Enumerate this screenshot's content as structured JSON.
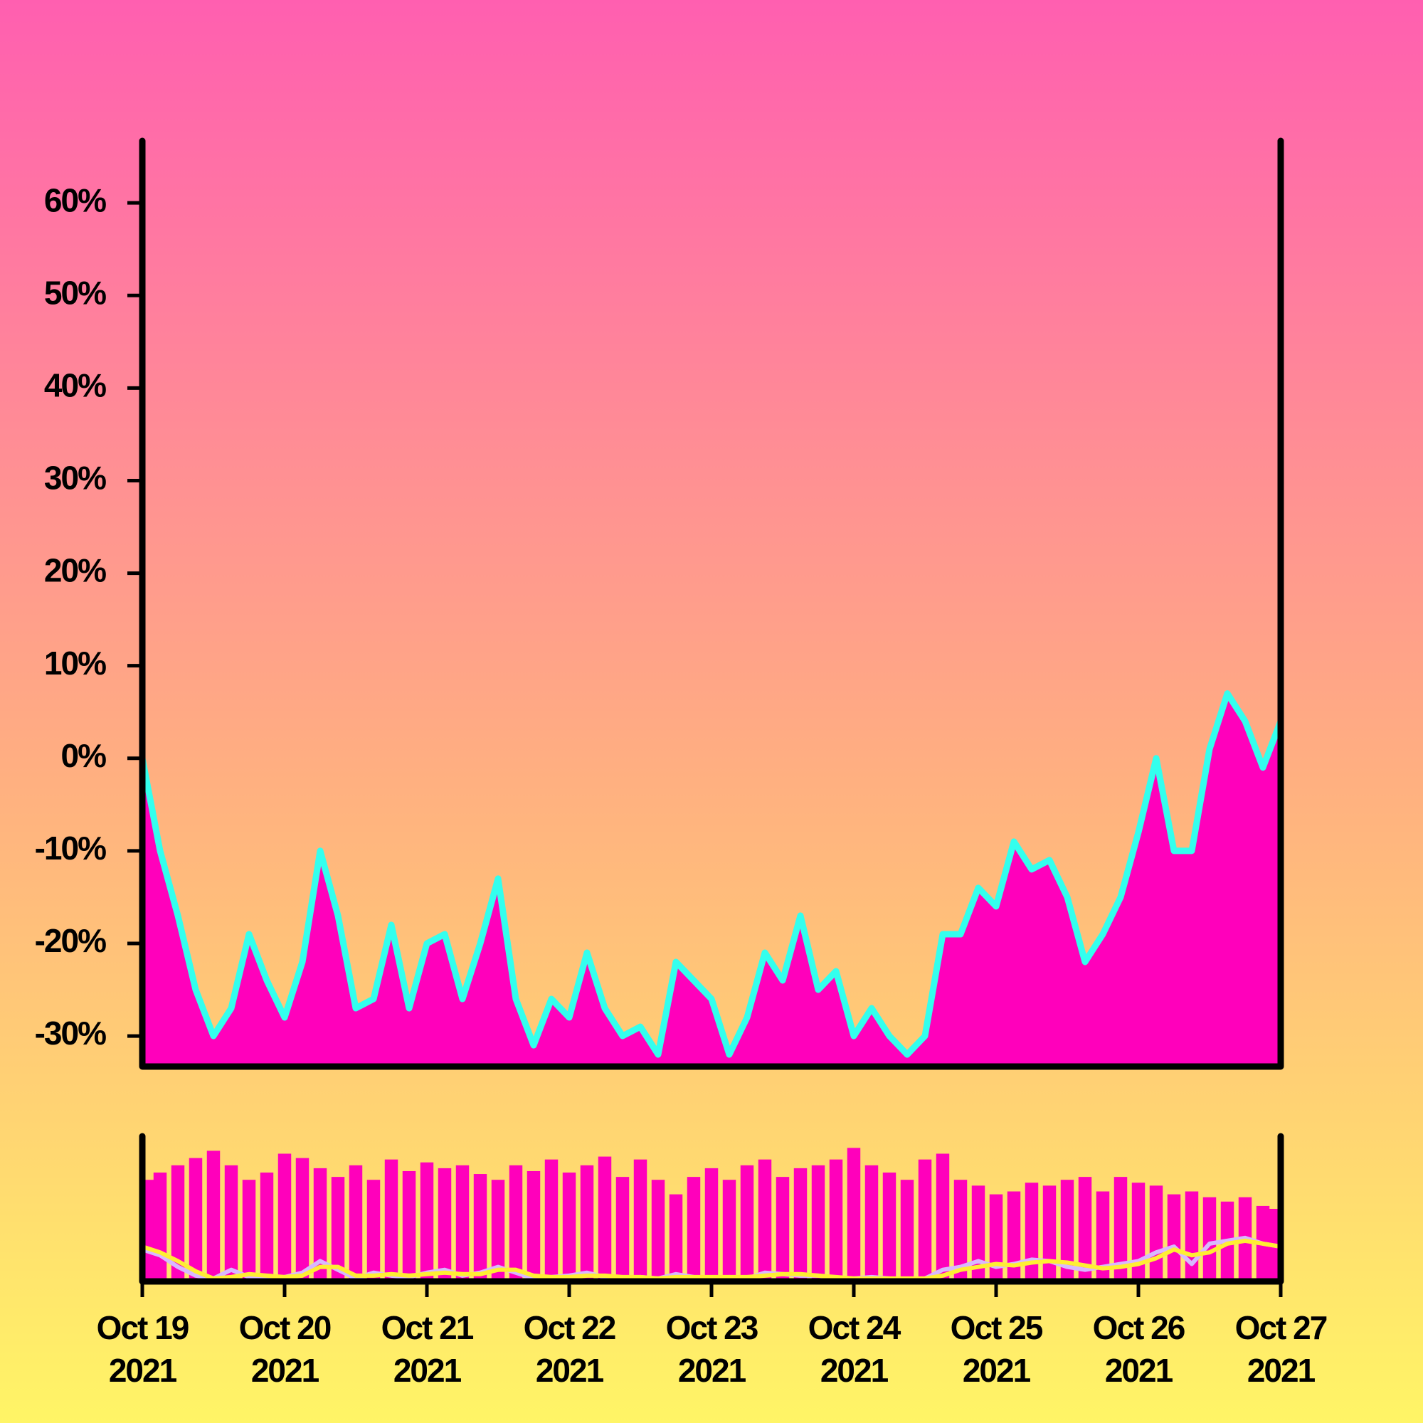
{
  "chart_data": [
    {
      "type": "area",
      "color": "#ff00bb",
      "line_color": "#33ffee",
      "x": [
        "2021-10-19 00:00",
        "2021-10-19 03:00",
        "2021-10-19 06:00",
        "2021-10-19 09:00",
        "2021-10-19 12:00",
        "2021-10-19 15:00",
        "2021-10-19 18:00",
        "2021-10-19 21:00",
        "2021-10-20 00:00",
        "2021-10-20 03:00",
        "2021-10-20 06:00",
        "2021-10-20 09:00",
        "2021-10-20 12:00",
        "2021-10-20 15:00",
        "2021-10-20 18:00",
        "2021-10-20 21:00",
        "2021-10-21 00:00",
        "2021-10-21 03:00",
        "2021-10-21 06:00",
        "2021-10-21 09:00",
        "2021-10-21 12:00",
        "2021-10-21 15:00",
        "2021-10-21 18:00",
        "2021-10-21 21:00",
        "2021-10-22 00:00",
        "2021-10-22 03:00",
        "2021-10-22 06:00",
        "2021-10-22 09:00",
        "2021-10-22 12:00",
        "2021-10-22 15:00",
        "2021-10-22 18:00",
        "2021-10-22 21:00",
        "2021-10-23 00:00",
        "2021-10-23 03:00",
        "2021-10-23 06:00",
        "2021-10-23 09:00",
        "2021-10-23 12:00",
        "2021-10-23 15:00",
        "2021-10-23 18:00",
        "2021-10-23 21:00",
        "2021-10-24 00:00",
        "2021-10-24 03:00",
        "2021-10-24 06:00",
        "2021-10-24 09:00",
        "2021-10-24 12:00",
        "2021-10-24 15:00",
        "2021-10-24 18:00",
        "2021-10-24 21:00",
        "2021-10-25 00:00",
        "2021-10-25 03:00",
        "2021-10-25 06:00",
        "2021-10-25 09:00",
        "2021-10-25 12:00",
        "2021-10-25 15:00",
        "2021-10-25 18:00",
        "2021-10-25 21:00",
        "2021-10-26 00:00",
        "2021-10-26 03:00",
        "2021-10-26 06:00",
        "2021-10-26 09:00",
        "2021-10-26 12:00",
        "2021-10-26 15:00",
        "2021-10-26 18:00",
        "2021-10-26 21:00",
        "2021-10-27 00:00"
      ],
      "values": [
        0,
        -10,
        -17,
        -25,
        -30,
        -27,
        -19,
        -24,
        -28,
        -22,
        -10,
        -17,
        -27,
        -26,
        -18,
        -27,
        -20,
        -19,
        -26,
        -20,
        -13,
        -26,
        -31,
        -26,
        -28,
        -21,
        -27,
        -30,
        -29,
        -32,
        -22,
        -24,
        -26,
        -32,
        -28,
        -21,
        -24,
        -17,
        -25,
        -23,
        -30,
        -27,
        -30,
        -32,
        -30,
        -19,
        -19,
        -14,
        -16,
        -9,
        -12,
        -11,
        -15,
        -22,
        -19,
        -15,
        -8,
        0,
        -10,
        -10,
        1,
        7,
        4,
        -1,
        4
      ],
      "xlim": [
        "2021-10-19 00:00",
        "2021-10-27 00:00"
      ],
      "ylim": [
        -33.3,
        66.7
      ],
      "yticks": [
        {
          "value": -30,
          "label": "-30%"
        },
        {
          "value": -20,
          "label": "-20%"
        },
        {
          "value": -10,
          "label": "-10%"
        },
        {
          "value": 0,
          "label": "0%"
        },
        {
          "value": 10,
          "label": "10%"
        },
        {
          "value": 20,
          "label": "20%"
        },
        {
          "value": 30,
          "label": "30%"
        },
        {
          "value": 40,
          "label": "40%"
        },
        {
          "value": 50,
          "label": "50%"
        },
        {
          "value": 60,
          "label": "60%"
        }
      ]
    },
    {
      "type": "bar",
      "x": [
        "2021-10-19 00:00",
        "2021-10-19 03:00",
        "2021-10-19 06:00",
        "2021-10-19 09:00",
        "2021-10-19 12:00",
        "2021-10-19 15:00",
        "2021-10-19 18:00",
        "2021-10-19 21:00",
        "2021-10-20 00:00",
        "2021-10-20 03:00",
        "2021-10-20 06:00",
        "2021-10-20 09:00",
        "2021-10-20 12:00",
        "2021-10-20 15:00",
        "2021-10-20 18:00",
        "2021-10-20 21:00",
        "2021-10-21 00:00",
        "2021-10-21 03:00",
        "2021-10-21 06:00",
        "2021-10-21 09:00",
        "2021-10-21 12:00",
        "2021-10-21 15:00",
        "2021-10-21 18:00",
        "2021-10-21 21:00",
        "2021-10-22 00:00",
        "2021-10-22 03:00",
        "2021-10-22 06:00",
        "2021-10-22 09:00",
        "2021-10-22 12:00",
        "2021-10-22 15:00",
        "2021-10-22 18:00",
        "2021-10-22 21:00",
        "2021-10-23 00:00",
        "2021-10-23 03:00",
        "2021-10-23 06:00",
        "2021-10-23 09:00",
        "2021-10-23 12:00",
        "2021-10-23 15:00",
        "2021-10-23 18:00",
        "2021-10-23 21:00",
        "2021-10-24 00:00",
        "2021-10-24 03:00",
        "2021-10-24 06:00",
        "2021-10-24 09:00",
        "2021-10-24 12:00",
        "2021-10-24 15:00",
        "2021-10-24 18:00",
        "2021-10-24 21:00",
        "2021-10-25 00:00",
        "2021-10-25 03:00",
        "2021-10-25 06:00",
        "2021-10-25 09:00",
        "2021-10-25 12:00",
        "2021-10-25 15:00",
        "2021-10-25 18:00",
        "2021-10-25 21:00",
        "2021-10-26 00:00",
        "2021-10-26 03:00",
        "2021-10-26 06:00",
        "2021-10-26 09:00",
        "2021-10-26 12:00",
        "2021-10-26 15:00",
        "2021-10-26 18:00",
        "2021-10-26 21:00",
        "2021-10-27 00:00"
      ],
      "series": [
        {
          "color": "#ff00bb",
          "values": [
            70,
            75,
            80,
            85,
            90,
            80,
            70,
            75,
            88,
            85,
            78,
            72,
            80,
            70,
            84,
            76,
            82,
            78,
            80,
            74,
            70,
            80,
            76,
            84,
            75,
            80,
            86,
            72,
            84,
            70,
            60,
            72,
            78,
            70,
            80,
            84,
            72,
            78,
            80,
            84,
            92,
            80,
            75,
            70,
            84,
            88,
            70,
            66,
            60,
            62,
            68,
            66,
            70,
            72,
            62,
            72,
            68,
            66,
            60,
            62,
            58,
            55,
            58,
            52,
            50
          ]
        },
        {
          "type": "line",
          "color": "#d8b8ff",
          "values": [
            22,
            18,
            10,
            4,
            2,
            8,
            3,
            2,
            3,
            6,
            14,
            8,
            2,
            6,
            4,
            3,
            6,
            8,
            4,
            6,
            10,
            6,
            2,
            3,
            4,
            6,
            3,
            2,
            3,
            2,
            5,
            3,
            2,
            3,
            2,
            6,
            5,
            4,
            4,
            2,
            2,
            3,
            2,
            1,
            2,
            8,
            10,
            14,
            10,
            12,
            15,
            14,
            10,
            8,
            10,
            12,
            14,
            20,
            24,
            12,
            26,
            28,
            30,
            26,
            24
          ]
        },
        {
          "type": "line",
          "color": "#ffee33",
          "values": [
            24,
            20,
            14,
            7,
            2,
            3,
            5,
            4,
            3,
            4,
            10,
            10,
            4,
            4,
            5,
            4,
            5,
            6,
            5,
            5,
            8,
            8,
            4,
            3,
            3,
            4,
            4,
            3,
            3,
            2,
            3,
            3,
            3,
            3,
            3,
            4,
            5,
            5,
            4,
            3,
            2,
            2,
            2,
            2,
            2,
            4,
            8,
            10,
            12,
            11,
            13,
            14,
            13,
            11,
            9,
            10,
            12,
            16,
            22,
            18,
            20,
            26,
            28,
            26,
            24
          ]
        }
      ],
      "xlim": [
        "2021-10-19 00:00",
        "2021-10-27 00:00"
      ],
      "ylim": [
        0,
        100
      ],
      "xticks": [
        {
          "value": "2021-10-19 00:00",
          "label": "Oct 19\n2021"
        },
        {
          "value": "2021-10-20 00:00",
          "label": "Oct 20\n2021"
        },
        {
          "value": "2021-10-21 00:00",
          "label": "Oct 21\n2021"
        },
        {
          "value": "2021-10-22 00:00",
          "label": "Oct 22\n2021"
        },
        {
          "value": "2021-10-23 00:00",
          "label": "Oct 23\n2021"
        },
        {
          "value": "2021-10-24 00:00",
          "label": "Oct 24\n2021"
        },
        {
          "value": "2021-10-25 00:00",
          "label": "Oct 25\n2021"
        },
        {
          "value": "2021-10-26 00:00",
          "label": "Oct 26\n2021"
        },
        {
          "value": "2021-10-27 00:00",
          "label": "Oct 27\n2021"
        }
      ]
    }
  ]
}
